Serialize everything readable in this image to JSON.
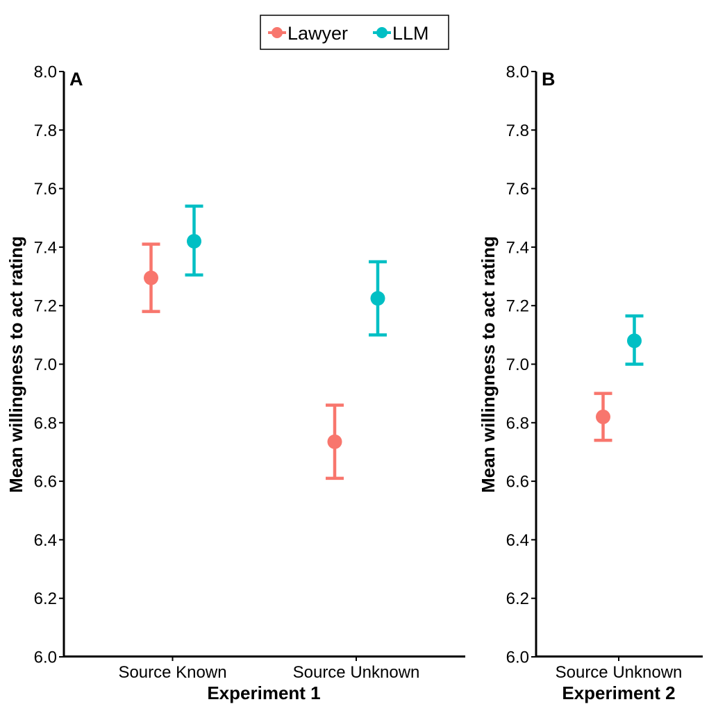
{
  "legend": {
    "entries": [
      {
        "label": "Lawyer",
        "color": "#F8766D"
      },
      {
        "label": "LLM",
        "color": "#00BFC4"
      }
    ]
  },
  "chart_data": [
    {
      "type": "scatter",
      "panel_label": "A",
      "xlabel": "Experiment 1",
      "ylabel": "Mean willingness to act rating",
      "ylim": [
        6.0,
        8.0
      ],
      "yticks": [
        "6.0",
        "6.2",
        "6.4",
        "6.6",
        "6.8",
        "7.0",
        "7.2",
        "7.4",
        "7.6",
        "7.8",
        "8.0"
      ],
      "categories": [
        "Source Known",
        "Source Unknown"
      ],
      "series": [
        {
          "name": "Lawyer",
          "color": "#F8766D",
          "values": [
            7.295,
            6.735
          ],
          "lower": [
            7.18,
            6.61
          ],
          "upper": [
            7.41,
            6.86
          ]
        },
        {
          "name": "LLM",
          "color": "#00BFC4",
          "values": [
            7.42,
            7.225
          ],
          "lower": [
            7.305,
            7.1
          ],
          "upper": [
            7.54,
            7.35
          ]
        }
      ]
    },
    {
      "type": "scatter",
      "panel_label": "B",
      "xlabel": "Experiment 2",
      "ylabel": "Mean willingness to act rating",
      "ylim": [
        6.0,
        8.0
      ],
      "yticks": [
        "6.0",
        "6.2",
        "6.4",
        "6.6",
        "6.8",
        "7.0",
        "7.2",
        "7.4",
        "7.6",
        "7.8",
        "8.0"
      ],
      "categories": [
        "Source Unknown"
      ],
      "series": [
        {
          "name": "Lawyer",
          "color": "#F8766D",
          "values": [
            6.82
          ],
          "lower": [
            6.74
          ],
          "upper": [
            6.9
          ]
        },
        {
          "name": "LLM",
          "color": "#00BFC4",
          "values": [
            7.08
          ],
          "lower": [
            7.0
          ],
          "upper": [
            7.165
          ]
        }
      ]
    }
  ]
}
